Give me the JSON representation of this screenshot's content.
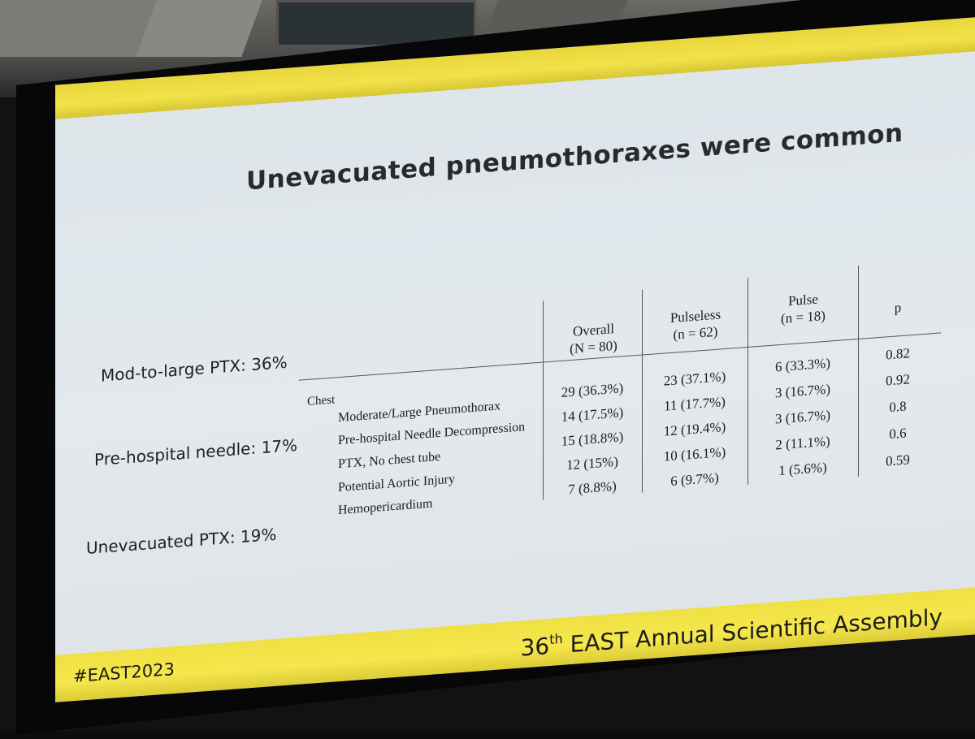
{
  "slide": {
    "title": "Unevacuated pneumothoraxes were common",
    "hashtag": "#EAST2023",
    "assembly_ordinal": "36",
    "assembly_suffix": "th",
    "assembly_name": "EAST Annual Scientific Assembly"
  },
  "stats": [
    {
      "label": "Mod-to-large PTX:",
      "value": "36%"
    },
    {
      "label": "Pre-hospital needle:",
      "value": "17%"
    },
    {
      "label": "Unevacuated PTX:",
      "value": "19%"
    }
  ],
  "table": {
    "columns": [
      {
        "line1": "Overall",
        "line2": "(N = 80)"
      },
      {
        "line1": "Pulseless",
        "line2": "(n = 62)"
      },
      {
        "line1": "Pulse",
        "line2": "(n = 18)"
      },
      {
        "line1": "p",
        "line2": ""
      }
    ],
    "section": "Chest",
    "rows": [
      {
        "label": "Moderate/Large Pneumothorax",
        "overall": "29 (36.3%)",
        "pulseless": "23 (37.1%)",
        "pulse": "6 (33.3%)",
        "p": "0.82"
      },
      {
        "label": "Pre-hospital Needle Decompression",
        "overall": "14 (17.5%)",
        "pulseless": "11 (17.7%)",
        "pulse": "3 (16.7%)",
        "p": "0.92"
      },
      {
        "label": "PTX, No chest tube",
        "overall": "15 (18.8%)",
        "pulseless": "12 (19.4%)",
        "pulse": "3 (16.7%)",
        "p": "0.8"
      },
      {
        "label": "Potential Aortic Injury",
        "overall": "12 (15%)",
        "pulseless": "10 (16.1%)",
        "pulse": "2 (11.1%)",
        "p": "0.6"
      },
      {
        "label": "Hemopericardium",
        "overall": "7 (8.8%)",
        "pulseless": "6 (9.7%)",
        "pulse": "1 (5.6%)",
        "p": "0.59"
      }
    ]
  }
}
